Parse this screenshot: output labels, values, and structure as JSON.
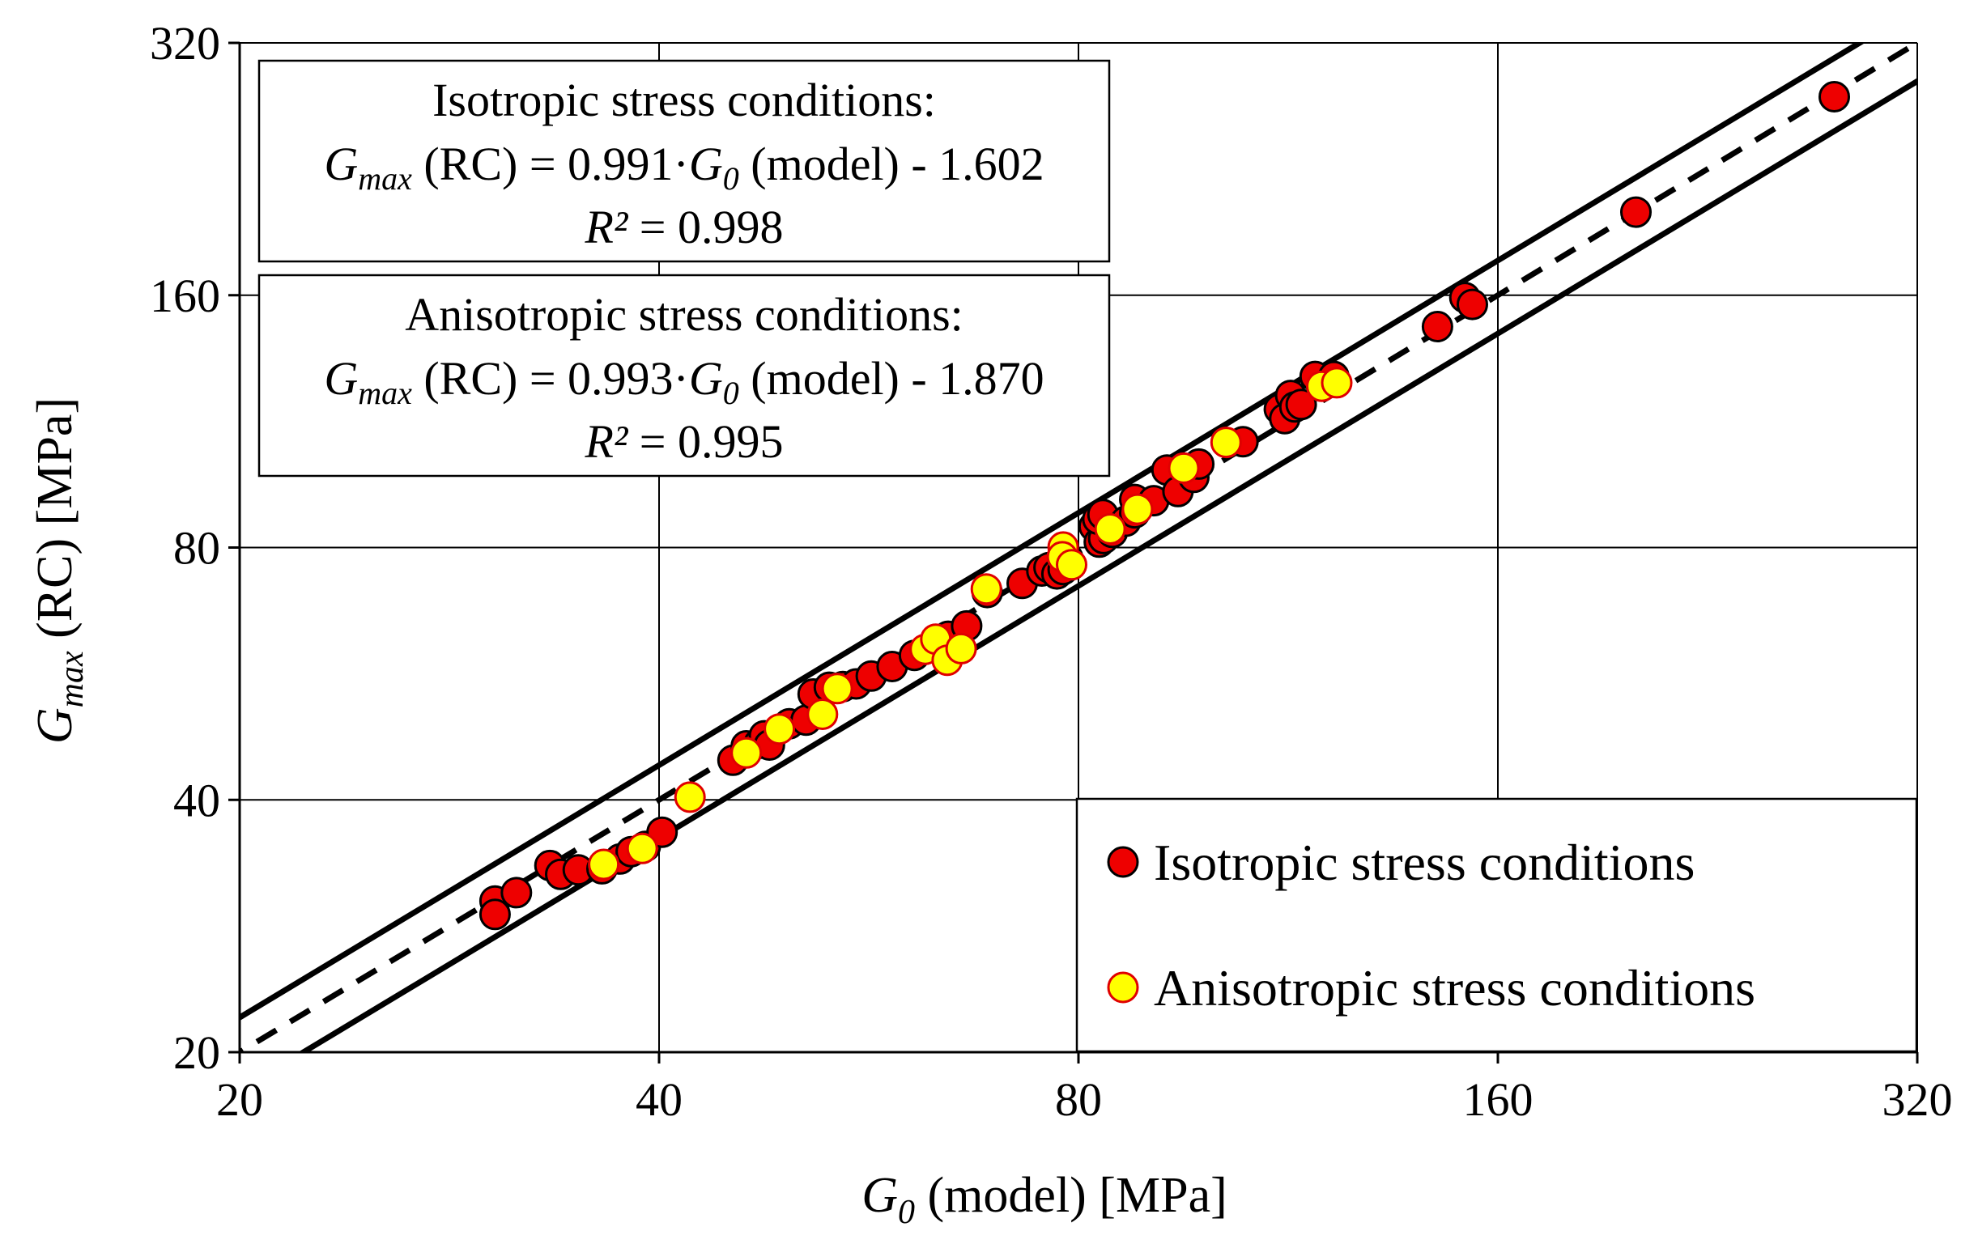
{
  "chart_data": {
    "type": "scatter",
    "x_scale": "log",
    "y_scale": "log",
    "xlim": [
      20,
      320
    ],
    "ylim": [
      20,
      320
    ],
    "x_ticks": [
      "20",
      "40",
      "80",
      "160",
      "320"
    ],
    "y_ticks": [
      "20",
      "40",
      "80",
      "160",
      "320"
    ],
    "xlabel": {
      "italic": "G",
      "sub": "0",
      "rest": " (model) [MPa]"
    },
    "ylabel": {
      "italic": "G",
      "sub": "max",
      "rest": " (RC) [MPa]"
    },
    "grid": true,
    "reference_lines": [
      {
        "name": "1:1 line",
        "style": "dashed",
        "factor": 1.0
      },
      {
        "name": "upper bound",
        "style": "solid",
        "factor": 1.1
      },
      {
        "name": "lower bound",
        "style": "solid",
        "factor": 0.9
      }
    ],
    "annotations": [
      {
        "title": "Isotropic stress conditions:",
        "lhs_italic": "G",
        "lhs_sub": "max",
        "lhs_rest": " (RC) = 0.991·",
        "rhs_italic": "G",
        "rhs_sub": "0",
        "rhs_rest": " (model) - 1.602",
        "r2_label": "R²",
        "r2_value": " = 0.998"
      },
      {
        "title": "Anisotropic stress conditions:",
        "lhs_italic": "G",
        "lhs_sub": "max",
        "lhs_rest": " (RC) = 0.993·",
        "rhs_italic": "G",
        "rhs_sub": "0",
        "rhs_rest": " (model) - 1.870",
        "r2_label": "R²",
        "r2_value": " = 0.995"
      }
    ],
    "legend_position": "bottom-right",
    "series": [
      {
        "name": "Isotropic stress conditions",
        "color": "#ee0000",
        "points": [
          [
            30.5,
            30.3
          ],
          [
            30.5,
            29.2
          ],
          [
            31.6,
            31.0
          ],
          [
            33.4,
            33.4
          ],
          [
            34.0,
            32.6
          ],
          [
            35.0,
            33.0
          ],
          [
            36.4,
            33.1
          ],
          [
            37.5,
            34.0
          ],
          [
            38.2,
            34.7
          ],
          [
            39.1,
            35.2
          ],
          [
            40.2,
            36.6
          ],
          [
            45.2,
            44.6
          ],
          [
            46.2,
            46.4
          ],
          [
            47.2,
            46.7
          ],
          [
            47.6,
            47.7
          ],
          [
            48.0,
            46.5
          ],
          [
            49.6,
            49.3
          ],
          [
            51.0,
            49.8
          ],
          [
            51.6,
            53.5
          ],
          [
            53.0,
            54.5
          ],
          [
            54.2,
            54.6
          ],
          [
            55.4,
            55.0
          ],
          [
            56.8,
            56.2
          ],
          [
            58.8,
            57.7
          ],
          [
            61.0,
            59.5
          ],
          [
            64.5,
            62.7
          ],
          [
            66.5,
            64.5
          ],
          [
            68.8,
            70.7
          ],
          [
            72.9,
            72.5
          ],
          [
            75.3,
            75.0
          ],
          [
            76.2,
            75.7
          ],
          [
            77.2,
            74.4
          ],
          [
            78.0,
            75.3
          ],
          [
            78.6,
            77.7
          ],
          [
            82.1,
            84.8
          ],
          [
            82.8,
            81.2
          ],
          [
            83.4,
            82.0
          ],
          [
            82.6,
            86.5
          ],
          [
            83.3,
            87.6
          ],
          [
            84.6,
            83.4
          ],
          [
            86.5,
            86.0
          ],
          [
            87.8,
            88.0
          ],
          [
            87.8,
            91.3
          ],
          [
            90.6,
            91.0
          ],
          [
            92.6,
            99.0
          ],
          [
            94.3,
            93.3
          ],
          [
            96.8,
            97.0
          ],
          [
            97.6,
            100.6
          ],
          [
            105.0,
            107.0
          ],
          [
            111.5,
            117.0
          ],
          [
            112.5,
            114.0
          ],
          [
            113.6,
            121.5
          ],
          [
            114.4,
            117.7
          ],
          [
            115.6,
            118.5
          ],
          [
            118.3,
            128.0
          ],
          [
            122.0,
            128.0
          ],
          [
            144.8,
            146.8
          ],
          [
            151.5,
            159.0
          ],
          [
            153.4,
            156.0
          ],
          [
            201.0,
            201.0
          ],
          [
            279.0,
            276.0
          ]
        ]
      },
      {
        "name": "Anisotropic stress conditions",
        "color": "#ffff00",
        "points": [
          [
            36.5,
            33.5
          ],
          [
            38.9,
            35.0
          ],
          [
            42.1,
            40.3
          ],
          [
            46.2,
            45.5
          ],
          [
            48.8,
            48.6
          ],
          [
            52.4,
            50.6
          ],
          [
            53.7,
            54.3
          ],
          [
            62.1,
            60.5
          ],
          [
            63.2,
            62.2
          ],
          [
            64.4,
            58.7
          ],
          [
            65.9,
            60.6
          ],
          [
            68.7,
            71.4
          ],
          [
            78.0,
            80.1
          ],
          [
            77.9,
            78.0
          ],
          [
            79.1,
            76.3
          ],
          [
            84.3,
            84.2
          ],
          [
            88.2,
            88.9
          ],
          [
            95.2,
            99.5
          ],
          [
            102.1,
            106.8
          ],
          [
            119.6,
            124.6
          ],
          [
            122.6,
            125.8
          ]
        ]
      }
    ]
  }
}
